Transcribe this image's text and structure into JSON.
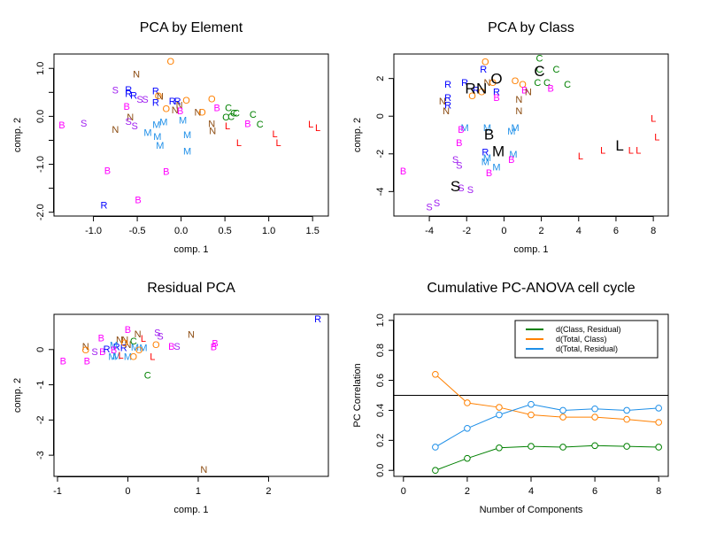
{
  "colors": {
    "B": "#ff00ff",
    "C": "#008000",
    "L": "#ff0000",
    "M": "#1e8fe8",
    "N": "#8b4a0f",
    "O": "#ff8000",
    "R": "#0000ff",
    "S": "#a020f0"
  },
  "chart_data": [
    {
      "type": "scatter",
      "title": "PCA by Element",
      "xlabel": "comp. 1",
      "ylabel": "comp. 2",
      "xlim": [
        -1.45,
        1.68
      ],
      "ylim": [
        -2.08,
        1.3
      ],
      "xticks": [
        -1.0,
        -0.5,
        0.0,
        0.5,
        1.0,
        1.5
      ],
      "xtick_labels": [
        "-1.0",
        "-0.5",
        "0.0",
        "0.5",
        "1.0",
        "1.5"
      ],
      "yticks": [
        1.0,
        0.0,
        -1.0,
        -2.0
      ],
      "ytick_labels": [
        "1.0",
        "0.0",
        "-1.0",
        "-2.0"
      ],
      "minor_yticks": [
        0.5,
        -0.5,
        -1.5
      ],
      "points": [
        {
          "label": "O",
          "x": -0.12,
          "y": 1.15
        },
        {
          "label": "N",
          "x": -0.51,
          "y": 0.88
        },
        {
          "label": "S",
          "x": -0.75,
          "y": 0.55
        },
        {
          "label": "R",
          "x": -0.6,
          "y": 0.56
        },
        {
          "label": "R",
          "x": -0.6,
          "y": 0.48
        },
        {
          "label": "R",
          "x": -0.54,
          "y": 0.44
        },
        {
          "label": "S",
          "x": -0.47,
          "y": 0.36
        },
        {
          "label": "S",
          "x": -0.41,
          "y": 0.36
        },
        {
          "label": "R",
          "x": -0.29,
          "y": 0.53
        },
        {
          "label": "O",
          "x": -0.26,
          "y": 0.43
        },
        {
          "label": "N",
          "x": -0.24,
          "y": 0.42
        },
        {
          "label": "R",
          "x": -0.29,
          "y": 0.29
        },
        {
          "label": "R",
          "x": -0.1,
          "y": 0.32
        },
        {
          "label": "R",
          "x": -0.04,
          "y": 0.32
        },
        {
          "label": "N",
          "x": -0.02,
          "y": 0.24
        },
        {
          "label": "O",
          "x": 0.06,
          "y": 0.34
        },
        {
          "label": "O",
          "x": -0.17,
          "y": 0.16
        },
        {
          "label": "N",
          "x": -0.07,
          "y": 0.14
        },
        {
          "label": "B",
          "x": -0.01,
          "y": 0.12
        },
        {
          "label": "B",
          "x": -0.62,
          "y": 0.21
        },
        {
          "label": "N",
          "x": -0.58,
          "y": -0.01
        },
        {
          "label": "S",
          "x": -0.6,
          "y": -0.1
        },
        {
          "label": "S",
          "x": -0.53,
          "y": -0.2
        },
        {
          "label": "N",
          "x": 0.19,
          "y": 0.09
        },
        {
          "label": "O",
          "x": 0.24,
          "y": 0.09
        },
        {
          "label": "O",
          "x": 0.35,
          "y": 0.37
        },
        {
          "label": "B",
          "x": 0.41,
          "y": 0.18
        },
        {
          "label": "C",
          "x": 0.54,
          "y": 0.18
        },
        {
          "label": "C",
          "x": 0.51,
          "y": -0.01
        },
        {
          "label": "C",
          "x": 0.57,
          "y": 0.0
        },
        {
          "label": "C",
          "x": 0.6,
          "y": 0.07
        },
        {
          "label": "C",
          "x": 0.63,
          "y": 0.07
        },
        {
          "label": "C",
          "x": 0.82,
          "y": 0.04
        },
        {
          "label": "C",
          "x": 0.9,
          "y": -0.16
        },
        {
          "label": "B",
          "x": 0.76,
          "y": -0.15
        },
        {
          "label": "N",
          "x": 0.35,
          "y": -0.15
        },
        {
          "label": "N",
          "x": 0.36,
          "y": -0.3
        },
        {
          "label": "L",
          "x": 0.53,
          "y": -0.2
        },
        {
          "label": "L",
          "x": 0.66,
          "y": -0.55
        },
        {
          "label": "L",
          "x": 1.07,
          "y": -0.36
        },
        {
          "label": "L",
          "x": 1.11,
          "y": -0.55
        },
        {
          "label": "L",
          "x": 1.48,
          "y": -0.16
        },
        {
          "label": "L",
          "x": 1.56,
          "y": -0.23
        },
        {
          "label": "B",
          "x": -1.36,
          "y": -0.18
        },
        {
          "label": "S",
          "x": -1.11,
          "y": -0.14
        },
        {
          "label": "N",
          "x": -0.75,
          "y": -0.27
        },
        {
          "label": "M",
          "x": -0.28,
          "y": -0.17
        },
        {
          "label": "M",
          "x": -0.2,
          "y": -0.11
        },
        {
          "label": "M",
          "x": 0.02,
          "y": -0.08
        },
        {
          "label": "M",
          "x": -0.38,
          "y": -0.33
        },
        {
          "label": "M",
          "x": -0.27,
          "y": -0.42
        },
        {
          "label": "M",
          "x": -0.24,
          "y": -0.6
        },
        {
          "label": "M",
          "x": 0.07,
          "y": -0.38
        },
        {
          "label": "M",
          "x": 0.07,
          "y": -0.72
        },
        {
          "label": "B",
          "x": -0.84,
          "y": -1.13
        },
        {
          "label": "B",
          "x": -0.17,
          "y": -1.15
        },
        {
          "label": "B",
          "x": -0.49,
          "y": -1.74
        },
        {
          "label": "R",
          "x": -0.88,
          "y": -1.85
        }
      ]
    },
    {
      "type": "scatter",
      "title": "PCA by Class",
      "xlabel": "comp. 1",
      "ylabel": "comp. 2",
      "xlim": [
        -5.9,
        8.8
      ],
      "ylim": [
        -5.3,
        3.3
      ],
      "xticks": [
        -4,
        -2,
        0,
        2,
        4,
        6,
        8
      ],
      "xtick_labels": [
        "-4",
        "-2",
        "0",
        "2",
        "4",
        "6",
        "8"
      ],
      "yticks": [
        2,
        0,
        -2,
        -4
      ],
      "ytick_labels": [
        "2",
        "0",
        "-2",
        "-4"
      ],
      "centroids": [
        {
          "label": "R",
          "x": -1.8,
          "y": 1.5
        },
        {
          "label": "N",
          "x": -1.2,
          "y": 1.5
        },
        {
          "label": "O",
          "x": -0.4,
          "y": 2.0
        },
        {
          "label": "C",
          "x": 1.9,
          "y": 2.4
        },
        {
          "label": "B",
          "x": -0.8,
          "y": -0.95
        },
        {
          "label": "M",
          "x": -0.3,
          "y": -1.85
        },
        {
          "label": "S",
          "x": -2.6,
          "y": -3.7
        },
        {
          "label": "L",
          "x": 6.2,
          "y": -1.55
        }
      ],
      "points": [
        {
          "label": "O",
          "x": -1.0,
          "y": 2.9
        },
        {
          "label": "R",
          "x": -1.1,
          "y": 2.5
        },
        {
          "label": "C",
          "x": 1.9,
          "y": 3.1
        },
        {
          "label": "C",
          "x": 2.8,
          "y": 2.5
        },
        {
          "label": "C",
          "x": 1.9,
          "y": 2.5
        },
        {
          "label": "C",
          "x": 1.8,
          "y": 1.8
        },
        {
          "label": "C",
          "x": 2.3,
          "y": 1.8
        },
        {
          "label": "C",
          "x": 3.4,
          "y": 1.7
        },
        {
          "label": "R",
          "x": -3.0,
          "y": 1.7
        },
        {
          "label": "R",
          "x": -2.1,
          "y": 1.8
        },
        {
          "label": "N",
          "x": -0.9,
          "y": 1.8
        },
        {
          "label": "O",
          "x": -0.6,
          "y": 1.8
        },
        {
          "label": "R",
          "x": -1.5,
          "y": 1.4
        },
        {
          "label": "O",
          "x": -1.7,
          "y": 1.1
        },
        {
          "label": "O",
          "x": -1.2,
          "y": 1.3
        },
        {
          "label": "R",
          "x": -0.4,
          "y": 1.3
        },
        {
          "label": "B",
          "x": -0.4,
          "y": 1.0
        },
        {
          "label": "O",
          "x": 0.6,
          "y": 1.9
        },
        {
          "label": "O",
          "x": 1.0,
          "y": 1.7
        },
        {
          "label": "B",
          "x": 1.1,
          "y": 1.4
        },
        {
          "label": "N",
          "x": 1.3,
          "y": 1.3
        },
        {
          "label": "N",
          "x": 0.8,
          "y": 0.9
        },
        {
          "label": "N",
          "x": 0.8,
          "y": 0.3
        },
        {
          "label": "B",
          "x": 2.5,
          "y": 1.5
        },
        {
          "label": "R",
          "x": -3.0,
          "y": 1.0
        },
        {
          "label": "N",
          "x": -3.3,
          "y": 0.8
        },
        {
          "label": "R",
          "x": -3.0,
          "y": 0.6
        },
        {
          "label": "N",
          "x": -3.1,
          "y": 0.3
        },
        {
          "label": "M",
          "x": -2.1,
          "y": -0.6
        },
        {
          "label": "B",
          "x": -2.3,
          "y": -0.7
        },
        {
          "label": "M",
          "x": -0.9,
          "y": -0.6
        },
        {
          "label": "M",
          "x": 0.6,
          "y": -0.6
        },
        {
          "label": "M",
          "x": 0.4,
          "y": -0.8
        },
        {
          "label": "B",
          "x": -2.4,
          "y": -1.4
        },
        {
          "label": "R",
          "x": -1.0,
          "y": -1.9
        },
        {
          "label": "M",
          "x": -0.9,
          "y": -2.2
        },
        {
          "label": "M",
          "x": -1.0,
          "y": -2.4
        },
        {
          "label": "M",
          "x": 0.5,
          "y": -2.0
        },
        {
          "label": "B",
          "x": 0.4,
          "y": -2.3
        },
        {
          "label": "M",
          "x": -0.4,
          "y": -2.7
        },
        {
          "label": "B",
          "x": -0.8,
          "y": -3.0
        },
        {
          "label": "S",
          "x": -2.6,
          "y": -2.3
        },
        {
          "label": "S",
          "x": -2.4,
          "y": -2.6
        },
        {
          "label": "S",
          "x": -2.3,
          "y": -3.8
        },
        {
          "label": "S",
          "x": -1.8,
          "y": -3.9
        },
        {
          "label": "S",
          "x": -3.6,
          "y": -4.6
        },
        {
          "label": "S",
          "x": -4.0,
          "y": -4.8
        },
        {
          "label": "B",
          "x": -5.4,
          "y": -2.9
        },
        {
          "label": "L",
          "x": 4.1,
          "y": -2.1
        },
        {
          "label": "L",
          "x": 5.3,
          "y": -1.8
        },
        {
          "label": "L",
          "x": 6.8,
          "y": -1.8
        },
        {
          "label": "L",
          "x": 7.2,
          "y": -1.8
        },
        {
          "label": "L",
          "x": 8.0,
          "y": -0.1
        },
        {
          "label": "L",
          "x": 8.2,
          "y": -1.1
        }
      ]
    },
    {
      "type": "scatter",
      "title": "Residual PCA",
      "xlabel": "comp. 1",
      "ylabel": "comp. 2",
      "xlim": [
        -1.05,
        2.85
      ],
      "ylim": [
        -3.6,
        1.0
      ],
      "xticks": [
        -1,
        0,
        1,
        2
      ],
      "xtick_labels": [
        "-1",
        "0",
        "1",
        "2"
      ],
      "yticks": [
        0,
        -1,
        -2,
        -3
      ],
      "ytick_labels": [
        "0",
        "-1",
        "-2",
        "-3"
      ],
      "points": [
        {
          "label": "R",
          "x": 2.7,
          "y": 0.87
        },
        {
          "label": "B",
          "x": 0.0,
          "y": 0.57
        },
        {
          "label": "N",
          "x": 0.14,
          "y": 0.45
        },
        {
          "label": "L",
          "x": 0.22,
          "y": 0.32
        },
        {
          "label": "S",
          "x": 0.42,
          "y": 0.48
        },
        {
          "label": "S",
          "x": 0.46,
          "y": 0.38
        },
        {
          "label": "N",
          "x": 0.9,
          "y": 0.44
        },
        {
          "label": "B",
          "x": -0.38,
          "y": 0.34
        },
        {
          "label": "N",
          "x": -0.12,
          "y": 0.28
        },
        {
          "label": "N",
          "x": -0.04,
          "y": 0.28
        },
        {
          "label": "C",
          "x": 0.08,
          "y": 0.25
        },
        {
          "label": "N",
          "x": -0.6,
          "y": 0.1
        },
        {
          "label": "O",
          "x": -0.6,
          "y": 0.0
        },
        {
          "label": "S",
          "x": -0.47,
          "y": -0.05
        },
        {
          "label": "B",
          "x": -0.36,
          "y": -0.05
        },
        {
          "label": "R",
          "x": -0.3,
          "y": 0.02
        },
        {
          "label": "R",
          "x": -0.16,
          "y": 0.08
        },
        {
          "label": "R",
          "x": -0.06,
          "y": 0.06
        },
        {
          "label": "M",
          "x": -0.2,
          "y": 0.13
        },
        {
          "label": "N",
          "x": 0.0,
          "y": 0.15
        },
        {
          "label": "O",
          "x": -0.05,
          "y": 0.2
        },
        {
          "label": "M",
          "x": 0.1,
          "y": 0.07
        },
        {
          "label": "M",
          "x": 0.22,
          "y": 0.06
        },
        {
          "label": "O",
          "x": 0.16,
          "y": 0.0
        },
        {
          "label": "B",
          "x": -0.2,
          "y": 0.0
        },
        {
          "label": "M",
          "x": -0.22,
          "y": -0.2
        },
        {
          "label": "M",
          "x": -0.16,
          "y": -0.18
        },
        {
          "label": "M",
          "x": 0.0,
          "y": -0.2
        },
        {
          "label": "O",
          "x": 0.08,
          "y": -0.2
        },
        {
          "label": "L",
          "x": -0.1,
          "y": -0.15
        },
        {
          "label": "L",
          "x": 0.35,
          "y": -0.2
        },
        {
          "label": "O",
          "x": 0.4,
          "y": 0.15
        },
        {
          "label": "B",
          "x": 0.62,
          "y": 0.09
        },
        {
          "label": "S",
          "x": 0.7,
          "y": 0.1
        },
        {
          "label": "B",
          "x": 1.24,
          "y": 0.18
        },
        {
          "label": "B",
          "x": 1.22,
          "y": 0.08
        },
        {
          "label": "B",
          "x": -0.92,
          "y": -0.32
        },
        {
          "label": "B",
          "x": -0.58,
          "y": -0.32
        },
        {
          "label": "C",
          "x": 0.28,
          "y": -0.72
        },
        {
          "label": "N",
          "x": 1.08,
          "y": -3.4
        }
      ]
    },
    {
      "type": "line",
      "title": "Cumulative PC-ANOVA cell cycle",
      "xlabel": "Number of Components",
      "ylabel": "PC Correlation",
      "xlim": [
        -0.3,
        8.3
      ],
      "ylim": [
        -0.04,
        1.04
      ],
      "xticks": [
        0,
        2,
        4,
        6,
        8
      ],
      "xtick_labels": [
        "0",
        "2",
        "4",
        "6",
        "8"
      ],
      "yticks": [
        0.0,
        0.2,
        0.4,
        0.6,
        0.8,
        1.0
      ],
      "ytick_labels": [
        "0.0",
        "0.2",
        "0.4",
        "0.6",
        "0.8",
        "1.0"
      ],
      "hline": 0.5,
      "legend_position": "top-right",
      "x": [
        1,
        2,
        3,
        4,
        5,
        6,
        7,
        8
      ],
      "series": [
        {
          "name": "d(Class, Residual)",
          "color": "#008000",
          "values": [
            0.0,
            0.08,
            0.15,
            0.16,
            0.155,
            0.165,
            0.16,
            0.155
          ]
        },
        {
          "name": "d(Total, Class)",
          "color": "#ff8000",
          "values": [
            0.64,
            0.45,
            0.42,
            0.37,
            0.355,
            0.355,
            0.34,
            0.32
          ]
        },
        {
          "name": "d(Total, Residual)",
          "color": "#1e8fe8",
          "values": [
            0.155,
            0.28,
            0.37,
            0.44,
            0.4,
            0.41,
            0.4,
            0.415
          ]
        }
      ]
    }
  ]
}
